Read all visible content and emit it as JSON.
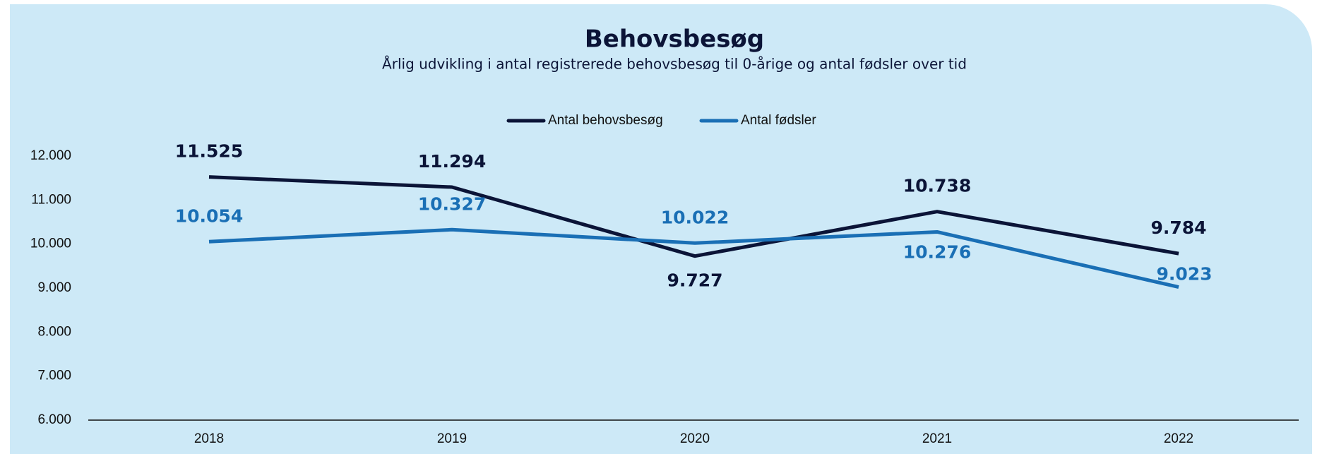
{
  "chart_data": {
    "type": "line",
    "title": "Behovsbesøg",
    "subtitle": "Årlig udvikling i antal registrerede behovsbesøg til 0-årige og antal fødsler over tid",
    "categories": [
      "2018",
      "2019",
      "2020",
      "2021",
      "2022"
    ],
    "series": [
      {
        "name": "Antal behovsbesøg",
        "color": "#0b1437",
        "values": [
          11525,
          11294,
          9727,
          10738,
          9784
        ],
        "value_labels": [
          "11.525",
          "11.294",
          "9.727",
          "10.738",
          "9.784"
        ]
      },
      {
        "name": "Antal fødsler",
        "color": "#1a6fb5",
        "values": [
          10054,
          10327,
          10022,
          10276,
          9023
        ],
        "value_labels": [
          "10.054",
          "10.327",
          "10.022",
          "10.276",
          "9.023"
        ]
      }
    ],
    "ylim": [
      6000,
      12000
    ],
    "yticks": [
      {
        "value": 6000,
        "label": "6.000"
      },
      {
        "value": 7000,
        "label": "7.000"
      },
      {
        "value": 8000,
        "label": "8.000"
      },
      {
        "value": 9000,
        "label": "9.000"
      },
      {
        "value": 10000,
        "label": "10.000"
      },
      {
        "value": 11000,
        "label": "11.000"
      },
      {
        "value": 12000,
        "label": "12.000"
      }
    ],
    "grid": false,
    "legend": "top"
  }
}
